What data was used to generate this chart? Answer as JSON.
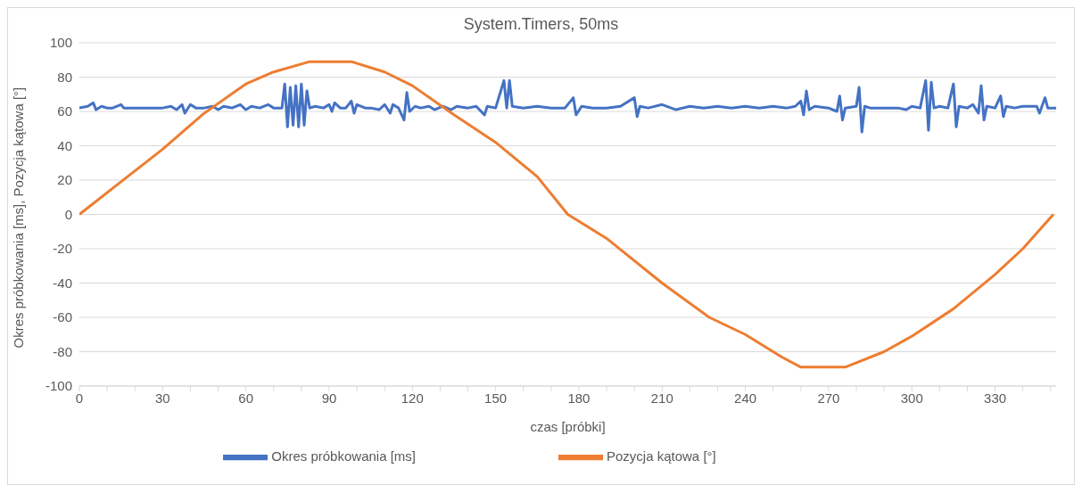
{
  "chart_data": {
    "type": "line",
    "title": "System.Timers, 50ms",
    "xlabel": "czas [próbki]",
    "ylabel": "Okres próbkowania [ms], Pozycja kątowa [°]",
    "xlim": [
      0,
      352
    ],
    "xticks": [
      0,
      {
        "value": 10,
        "label": null
      },
      {
        "value": 20,
        "label": null
      },
      30,
      {
        "value": 40,
        "label": null
      },
      {
        "value": 50,
        "label": null
      },
      60,
      {
        "value": 70,
        "label": null
      },
      {
        "value": 80,
        "label": null
      },
      90,
      {
        "value": 100,
        "label": null
      },
      {
        "value": 110,
        "label": null
      },
      120,
      {
        "value": 130,
        "label": null
      },
      {
        "value": 140,
        "label": null
      },
      150,
      {
        "value": 160,
        "label": null
      },
      {
        "value": 170,
        "label": null
      },
      180,
      {
        "value": 190,
        "label": null
      },
      {
        "value": 200,
        "label": null
      },
      210,
      {
        "value": 220,
        "label": null
      },
      {
        "value": 230,
        "label": null
      },
      240,
      {
        "value": 250,
        "label": null
      },
      {
        "value": 260,
        "label": null
      },
      270,
      {
        "value": 280,
        "label": null
      },
      {
        "value": 290,
        "label": null
      },
      300,
      {
        "value": 310,
        "label": null
      },
      {
        "value": 320,
        "label": null
      },
      330,
      {
        "value": 340,
        "label": null
      },
      {
        "value": 350,
        "label": null
      }
    ],
    "ylim": [
      -100,
      100
    ],
    "yticks": [
      -100,
      -80,
      -60,
      -40,
      -20,
      0,
      20,
      40,
      60,
      80,
      100
    ],
    "grid": "y",
    "legend": "bottom",
    "marker": "none",
    "line_style": "solid",
    "series": [
      {
        "name": "Okres próbkowania [ms]",
        "color": "#4472c4",
        "x": [
          0,
          3,
          5,
          6,
          8,
          10,
          12,
          15,
          16,
          20,
          25,
          30,
          33,
          35,
          37,
          38,
          40,
          42,
          45,
          48,
          50,
          52,
          55,
          58,
          60,
          62,
          65,
          68,
          70,
          73,
          74,
          75,
          76,
          77,
          78,
          79,
          80,
          81,
          82,
          83,
          85,
          88,
          90,
          91,
          92,
          94,
          96,
          98,
          99,
          100,
          103,
          105,
          108,
          110,
          112,
          113,
          115,
          117,
          118,
          119,
          121,
          123,
          126,
          128,
          131,
          134,
          136,
          140,
          143,
          146,
          147,
          150,
          153,
          154,
          155,
          156,
          160,
          165,
          170,
          175,
          178,
          179,
          181,
          185,
          190,
          195,
          200,
          201,
          202,
          205,
          210,
          215,
          220,
          225,
          230,
          235,
          240,
          245,
          250,
          255,
          258,
          260,
          261,
          262,
          263,
          265,
          270,
          273,
          274,
          275,
          276,
          280,
          281,
          282,
          283,
          285,
          290,
          293,
          295,
          298,
          300,
          303,
          305,
          306,
          307,
          308,
          310,
          313,
          315,
          316,
          317,
          320,
          322,
          324,
          325,
          326,
          327,
          330,
          332,
          333,
          334,
          337,
          340,
          345,
          346,
          348,
          349,
          352
        ],
        "values": [
          62,
          63,
          65,
          61,
          63,
          62,
          62,
          64,
          62,
          62,
          62,
          62,
          63,
          61,
          64,
          59,
          64,
          62,
          62,
          63,
          61,
          63,
          62,
          64,
          61,
          63,
          62,
          64,
          62,
          62,
          76,
          51,
          74,
          52,
          75,
          51,
          76,
          52,
          72,
          62,
          63,
          62,
          64,
          60,
          65,
          62,
          62,
          66,
          59,
          64,
          62,
          62,
          61,
          64,
          59,
          64,
          62,
          55,
          71,
          60,
          63,
          62,
          63,
          61,
          63,
          61,
          63,
          62,
          63,
          58,
          63,
          62,
          78,
          62,
          78,
          63,
          62,
          63,
          62,
          62,
          68,
          58,
          63,
          62,
          62,
          63,
          68,
          57,
          63,
          62,
          64,
          61,
          63,
          62,
          63,
          62,
          63,
          62,
          63,
          62,
          63,
          66,
          58,
          72,
          61,
          63,
          62,
          60,
          69,
          55,
          62,
          63,
          74,
          48,
          63,
          62,
          62,
          62,
          62,
          61,
          63,
          62,
          78,
          49,
          77,
          62,
          63,
          62,
          76,
          51,
          63,
          62,
          64,
          59,
          75,
          55,
          63,
          62,
          69,
          57,
          63,
          62,
          63,
          63,
          59,
          68,
          62,
          62
        ]
      },
      {
        "name": "Pozycja kątowa [°]",
        "color": "#ed7d31",
        "x": [
          0,
          15,
          30,
          45,
          60,
          70,
          83,
          98,
          110,
          120,
          135,
          150,
          165,
          176,
          190,
          210,
          227,
          240,
          253,
          260,
          276,
          290,
          300,
          315,
          330,
          340,
          351
        ],
        "values": [
          0,
          19,
          38,
          59,
          76,
          83,
          89,
          89,
          83,
          75,
          58,
          42,
          22,
          0,
          -14,
          -40,
          -60,
          -70,
          -83,
          -89,
          -89,
          -80,
          -71,
          -55,
          -35,
          -20,
          0
        ]
      }
    ]
  }
}
